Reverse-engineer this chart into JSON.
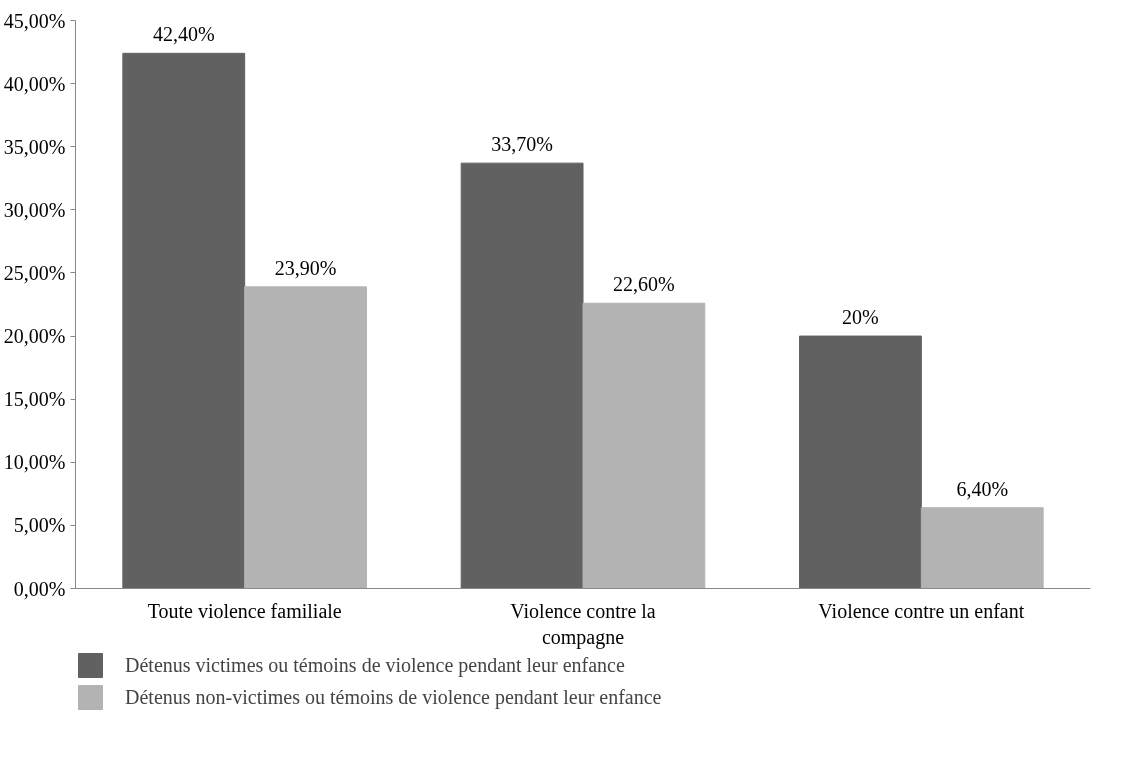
{
  "chart_data": {
    "type": "bar",
    "categories": [
      "Toute violence familiale",
      "Violence contre la compagne",
      "Violence contre un enfant"
    ],
    "series": [
      {
        "name": "Détenus victimes ou témoins de violence pendant leur enfance",
        "color": "#616161",
        "values": [
          42.4,
          33.7,
          20
        ],
        "value_labels": [
          "42,40%",
          "33,70%",
          "20%"
        ]
      },
      {
        "name": "Détenus non-victimes ou témoins de violence pendant leur enfance",
        "color": "#b3b3b3",
        "values": [
          23.9,
          22.6,
          6.4
        ],
        "value_labels": [
          "23,90%",
          "22,60%",
          "6,40%"
        ]
      }
    ],
    "ylim": [
      0,
      45
    ],
    "yticks": [
      {
        "value": 0,
        "label": "0,00%"
      },
      {
        "value": 5,
        "label": "5,00%"
      },
      {
        "value": 10,
        "label": "10,00%"
      },
      {
        "value": 15,
        "label": "15,00%"
      },
      {
        "value": 20,
        "label": "20,00%"
      },
      {
        "value": 25,
        "label": "25,00%"
      },
      {
        "value": 30,
        "label": "30,00%"
      },
      {
        "value": 35,
        "label": "35,00%"
      },
      {
        "value": 40,
        "label": "40,00%"
      },
      {
        "value": 45,
        "label": "45,00%"
      }
    ],
    "grid": false,
    "legend": "bottom"
  }
}
